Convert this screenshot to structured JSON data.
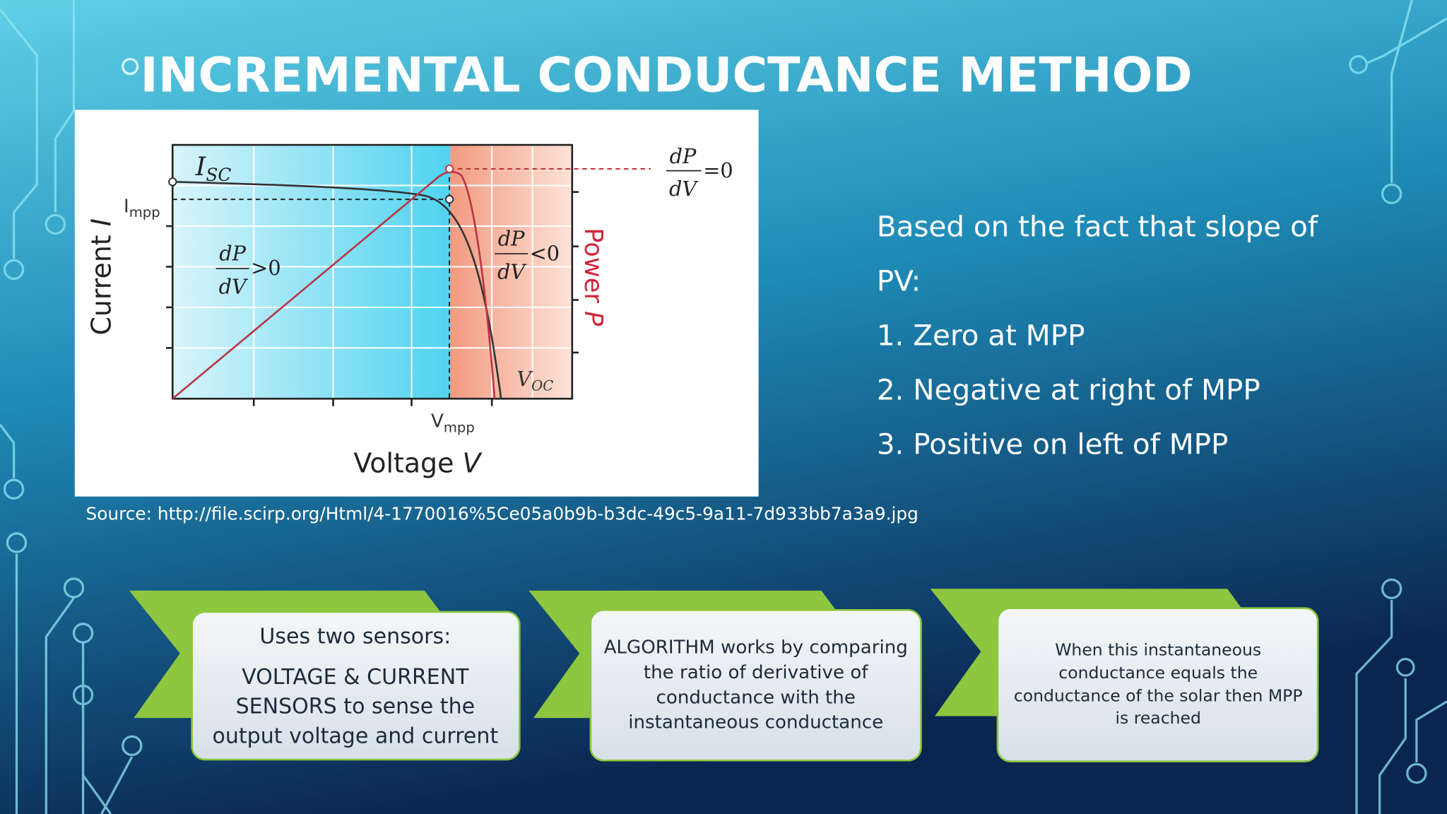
{
  "title": "INCREMENTAL CONDUCTANCE METHOD",
  "figure": {
    "isc": {
      "main": "I",
      "sub": "SC"
    },
    "impp": {
      "main": "I",
      "sub": "mpp"
    },
    "vmpp": {
      "main": "V",
      "sub": "mpp"
    },
    "voc": {
      "main": "V",
      "sub": "OC"
    },
    "peak": {
      "num": "dP",
      "den": "dV",
      "rel": "=0"
    },
    "left": {
      "num": "dP",
      "den": "dV",
      "rel": ">0"
    },
    "right": {
      "num": "dP",
      "den": "dV",
      "rel": "<0"
    },
    "y_label": {
      "text": "Current",
      "symbol": "I"
    },
    "y2_label": {
      "text": "Power",
      "symbol": "P"
    },
    "x_label": {
      "text": "Voltage",
      "symbol": "V"
    }
  },
  "source": "Source: http://file.scirp.org/Html/4-1770016%5Ce05a0b9b-b3dc-49c5-9a11-7d933bb7a3a9.jpg",
  "slope": {
    "intro": [
      "Based on the fact that slope of",
      "PV:"
    ],
    "items": [
      "1. Zero at MPP",
      "2. Negative at right of MPP",
      "3. Positive on left of MPP"
    ]
  },
  "steps": [
    {
      "heading": "Uses two sensors:",
      "lines": [
        "VOLTAGE & CURRENT",
        "SENSORS to sense the",
        "output voltage and current"
      ]
    },
    {
      "lines": [
        "ALGORITHM works by comparing",
        "the ratio of derivative of",
        "conductance with the",
        "instantaneous conductance"
      ]
    },
    {
      "lines": [
        "When this instantaneous",
        "conductance equals the",
        "conductance of the solar then MPP",
        "is reached"
      ]
    }
  ]
}
